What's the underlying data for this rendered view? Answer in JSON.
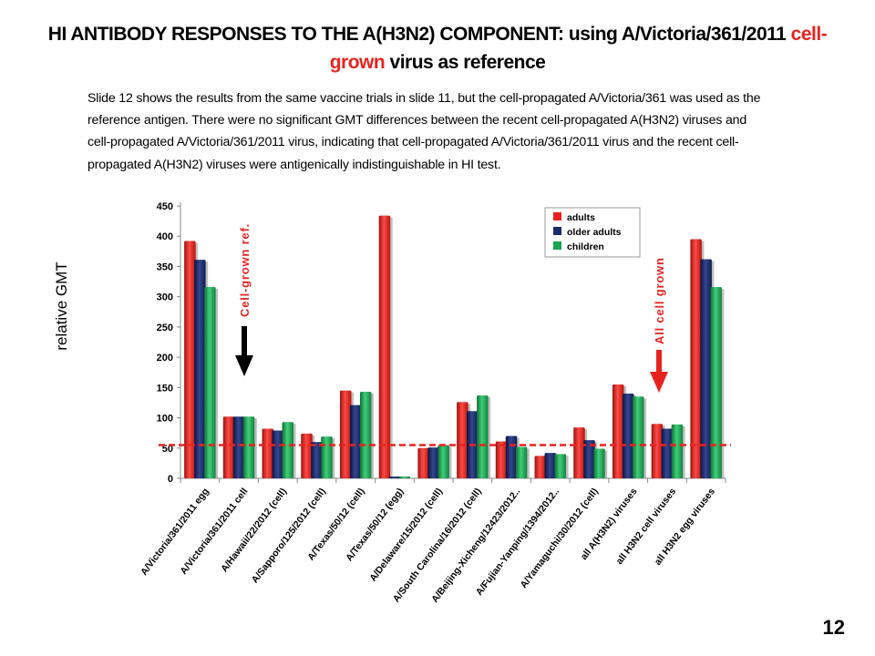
{
  "slide": {
    "title_main": "HI ANTIBODY RESPONSES TO THE A(H3N2) COMPONENT: using A/Victoria/361/2011 ",
    "title_accent_1": "cell-",
    "title_accent_2": "grown",
    "title_tail": " virus as reference",
    "body": "Slide 12 shows the results from the same vaccine trials in slide 11, but the cell-propagated A/Victoria/361 was used as the reference antigen. There were no significant GMT differences between the recent cell-propagated A(H3N2) viruses and cell-propagated A/Victoria/361/2011 virus, indicating that cell-propagated A/Victoria/361/2011 virus and the recent cell-propagated A(H3N2) viruses were antigenically indistinguishable in HI test.",
    "page_number": "12"
  },
  "chart_data": {
    "type": "bar",
    "title": "",
    "xlabel": "",
    "ylabel": "relative GMT",
    "ylim": [
      0,
      450
    ],
    "yticks": [
      "0",
      "50",
      "100",
      "150",
      "200",
      "250",
      "300",
      "350",
      "400",
      "450"
    ],
    "grid": false,
    "legend_position": "top-right",
    "categories": [
      "A/Victoria/361/2011 egg",
      "A/Victoria/361/2011 cell",
      "A/Hawaii/22/2012 (cell)",
      "A/Sapporo/125/2012 (cell)",
      "A/Texas/50/12 (cell)",
      "A/Texas/50/12 (egg)",
      "A/Delaware/15/2012  (cell)",
      "A/South Carolina/16/2012 (cell)",
      "A/Beijing-Xicheng/12423/2012..",
      "A/Fujian-Yanping/1394/2012..",
      "A/Yamaguchi/30/2012   (cell)",
      "all A(H3N2) viruses",
      "all H3N2 cell viruses",
      "all H3N2 egg viruses"
    ],
    "series": [
      {
        "name": "adults",
        "color": "#e8231f",
        "values": [
          392,
          102,
          82,
          74,
          145,
          434,
          50,
          126,
          61,
          37,
          84,
          155,
          90,
          395
        ]
      },
      {
        "name": "older adults",
        "color": "#1b2a6b",
        "values": [
          361,
          102,
          79,
          60,
          121,
          3,
          51,
          111,
          70,
          42,
          63,
          140,
          82,
          362
        ]
      },
      {
        "name": "children",
        "color": "#1aa351",
        "values": [
          316,
          102,
          93,
          69,
          143,
          3,
          55,
          137,
          52,
          40,
          49,
          135,
          89,
          316
        ]
      }
    ],
    "reference_line": {
      "value": 55,
      "color": "#e8231f",
      "style": "dashed"
    },
    "annotations": [
      {
        "text": "Cell-grown ref.",
        "color": "#e8231f",
        "arrow_color": "#000000",
        "category_index": 1
      },
      {
        "text": "All cell grown",
        "color": "#e8231f",
        "arrow_color": "#e8231f",
        "category_index": 12
      }
    ]
  }
}
